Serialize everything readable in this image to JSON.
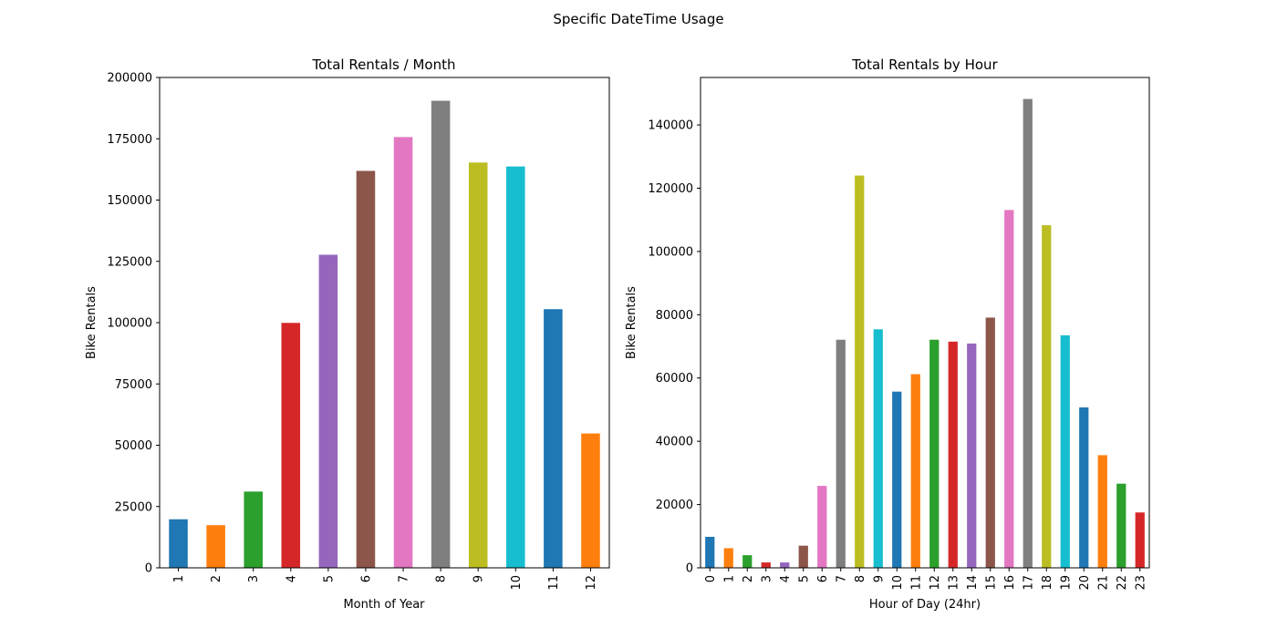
{
  "figure": {
    "suptitle": "Specific DateTime Usage"
  },
  "palette": [
    "#1f77b4",
    "#ff7f0e",
    "#2ca02c",
    "#d62728",
    "#9467bd",
    "#8c564b",
    "#e377c2",
    "#7f7f7f",
    "#bcbd22",
    "#17becf"
  ],
  "chart_data": [
    {
      "type": "bar",
      "title": "Total Rentals / Month",
      "xlabel": "Month of Year",
      "ylabel": "Bike Rentals",
      "categories": [
        "1",
        "2",
        "3",
        "4",
        "5",
        "6",
        "7",
        "8",
        "9",
        "10",
        "11",
        "12"
      ],
      "values": [
        19800,
        17400,
        31100,
        99900,
        127700,
        161900,
        175700,
        190500,
        165300,
        163700,
        105500,
        54800
      ],
      "ylim": [
        0,
        200000
      ],
      "yticks": [
        "0",
        "25000",
        "50000",
        "75000",
        "100000",
        "125000",
        "150000",
        "175000",
        "200000"
      ],
      "legend": "none",
      "grid": false
    },
    {
      "type": "bar",
      "title": "Total Rentals by Hour",
      "xlabel": "Hour of Day (24hr)",
      "ylabel": "Bike Rentals",
      "categories": [
        "0",
        "1",
        "2",
        "3",
        "4",
        "5",
        "6",
        "7",
        "8",
        "9",
        "10",
        "11",
        "12",
        "13",
        "14",
        "15",
        "16",
        "17",
        "18",
        "19",
        "20",
        "21",
        "22",
        "23"
      ],
      "values": [
        9800,
        6200,
        4000,
        1700,
        1700,
        7000,
        25900,
        72100,
        124000,
        75400,
        55700,
        61200,
        72100,
        71500,
        70900,
        79100,
        113100,
        148200,
        108300,
        73500,
        50700,
        35600,
        26600,
        17500
      ],
      "ylim": [
        0,
        155000
      ],
      "yticks": [
        "0",
        "20000",
        "40000",
        "60000",
        "80000",
        "100000",
        "120000",
        "140000"
      ],
      "legend": "none",
      "grid": false
    }
  ]
}
